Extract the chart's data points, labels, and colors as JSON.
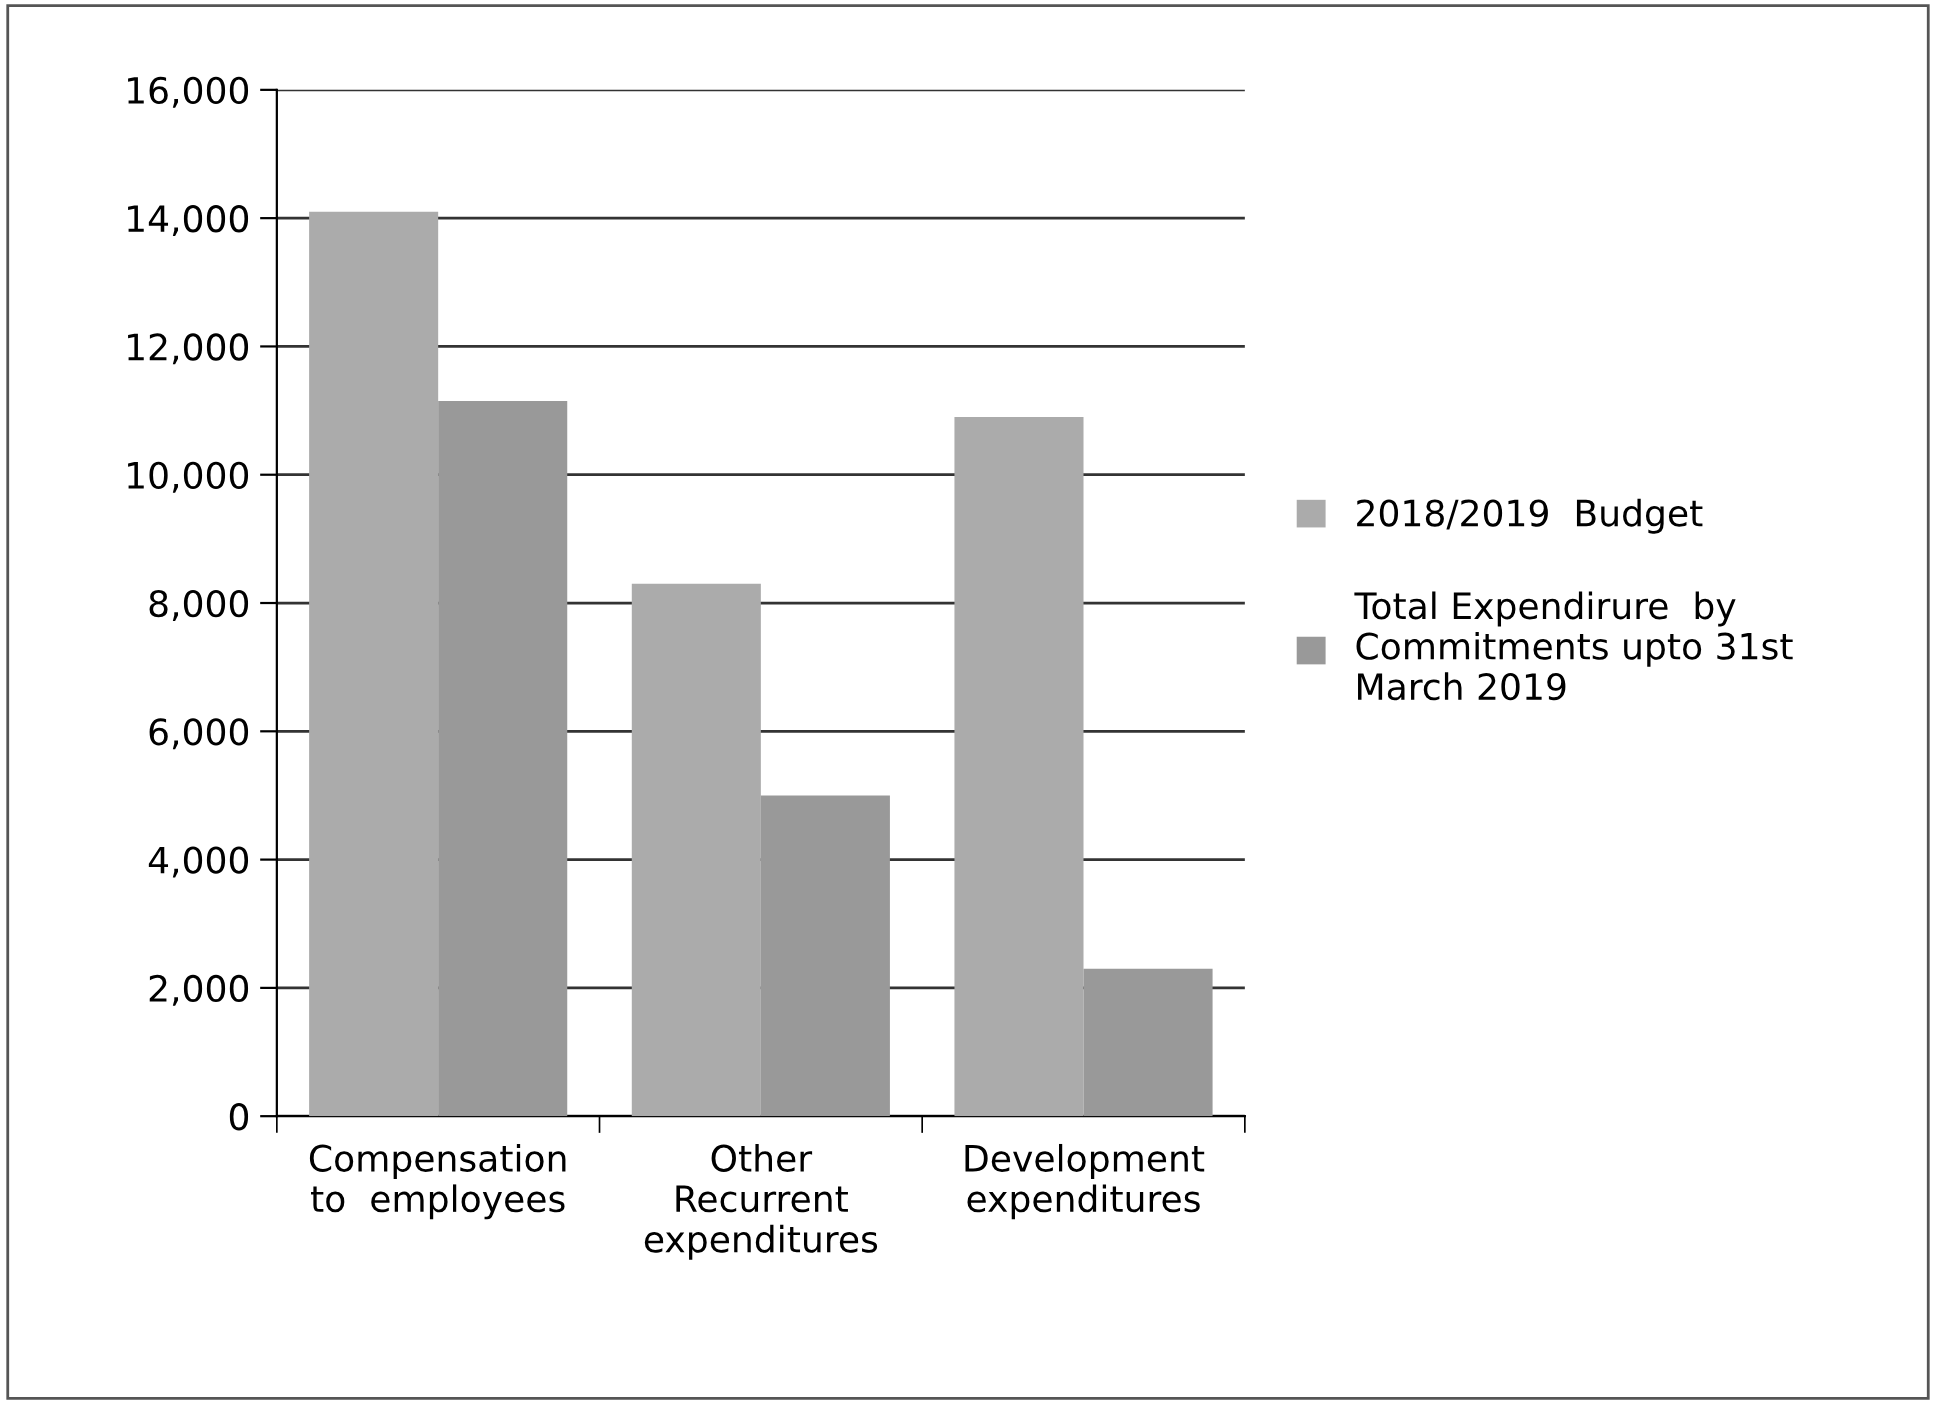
{
  "chart_data": {
    "type": "bar",
    "categories": [
      "Compensation\nto  employees",
      "Other\nRecurrent\nexpenditures",
      "Development\nexpenditures"
    ],
    "series": [
      {
        "name": "2018/2019  Budget",
        "color": "#ababab",
        "values": [
          14100,
          8300,
          10900
        ]
      },
      {
        "name": "Total Expendirure  by\nCommitments upto 31st\nMarch 2019",
        "color": "#999999",
        "values": [
          11150,
          5000,
          2300
        ]
      }
    ],
    "ylim": [
      0,
      16000
    ],
    "yticks": [
      {
        "value": 0,
        "label": "0"
      },
      {
        "value": 2000,
        "label": "2,000"
      },
      {
        "value": 4000,
        "label": "4,000"
      },
      {
        "value": 6000,
        "label": "6,000"
      },
      {
        "value": 8000,
        "label": "8,000"
      },
      {
        "value": 10000,
        "label": "10,000"
      },
      {
        "value": 12000,
        "label": "12,000"
      },
      {
        "value": 14000,
        "label": "14,000"
      },
      {
        "value": 16000,
        "label": "16,000"
      }
    ],
    "grid": "y",
    "legend": "right"
  }
}
